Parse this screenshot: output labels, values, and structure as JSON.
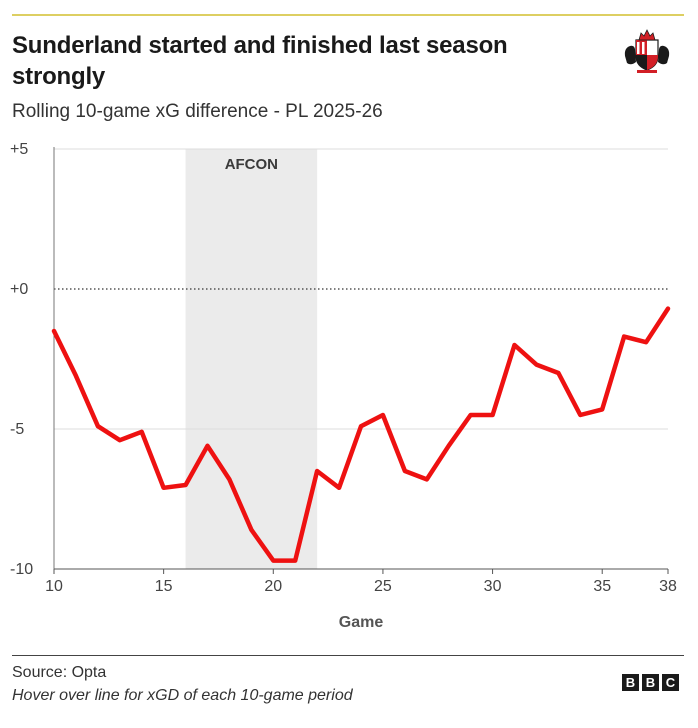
{
  "header": {
    "title": "Sunderland started and finished last season strongly",
    "subtitle": "Rolling 10-game xG difference - PL 2025-26",
    "crest_icon": "sunderland-crest-icon"
  },
  "chart_data": {
    "type": "line",
    "title": "Sunderland started and finished last season strongly",
    "subtitle": "Rolling 10-game xG difference - PL 2025-26",
    "xlabel": "Game",
    "ylabel": "",
    "xlim": [
      10,
      38
    ],
    "ylim": [
      -10,
      5
    ],
    "x_ticks": [
      10,
      15,
      20,
      25,
      30,
      35,
      38
    ],
    "x_tick_labels": [
      "10",
      "15",
      "20",
      "25",
      "30",
      "35",
      "38"
    ],
    "y_ticks": [
      5,
      0,
      -5,
      -10
    ],
    "y_tick_labels": [
      "+5",
      "+0",
      "-5",
      "-10"
    ],
    "grid": true,
    "reference_line": {
      "y": 0,
      "style": "dotted"
    },
    "band": {
      "x_start": 16,
      "x_end": 22,
      "label": "AFCON"
    },
    "line_color": "#ee1111",
    "series": [
      {
        "x": [
          10,
          11,
          12,
          13,
          14,
          15,
          16,
          17,
          18,
          19,
          20,
          21,
          22,
          23,
          24,
          25,
          26,
          27,
          28,
          29,
          30,
          31,
          32,
          33,
          34,
          35,
          36,
          37,
          38
        ],
        "values": [
          -1.5,
          -3.1,
          -4.9,
          -5.4,
          -5.1,
          -7.1,
          -7.0,
          -5.6,
          -6.8,
          -8.6,
          -9.7,
          -9.7,
          -6.5,
          -7.1,
          -4.9,
          -4.5,
          -6.5,
          -6.8,
          -5.6,
          -4.5,
          -4.5,
          -2.0,
          -2.7,
          -3.0,
          -4.5,
          -4.3,
          -1.7,
          -1.9,
          -0.7
        ]
      }
    ]
  },
  "footer": {
    "source": "Source: Opta",
    "note": "Hover over line for xGD of each 10-game period",
    "logo_letters": [
      "B",
      "B",
      "C"
    ]
  }
}
